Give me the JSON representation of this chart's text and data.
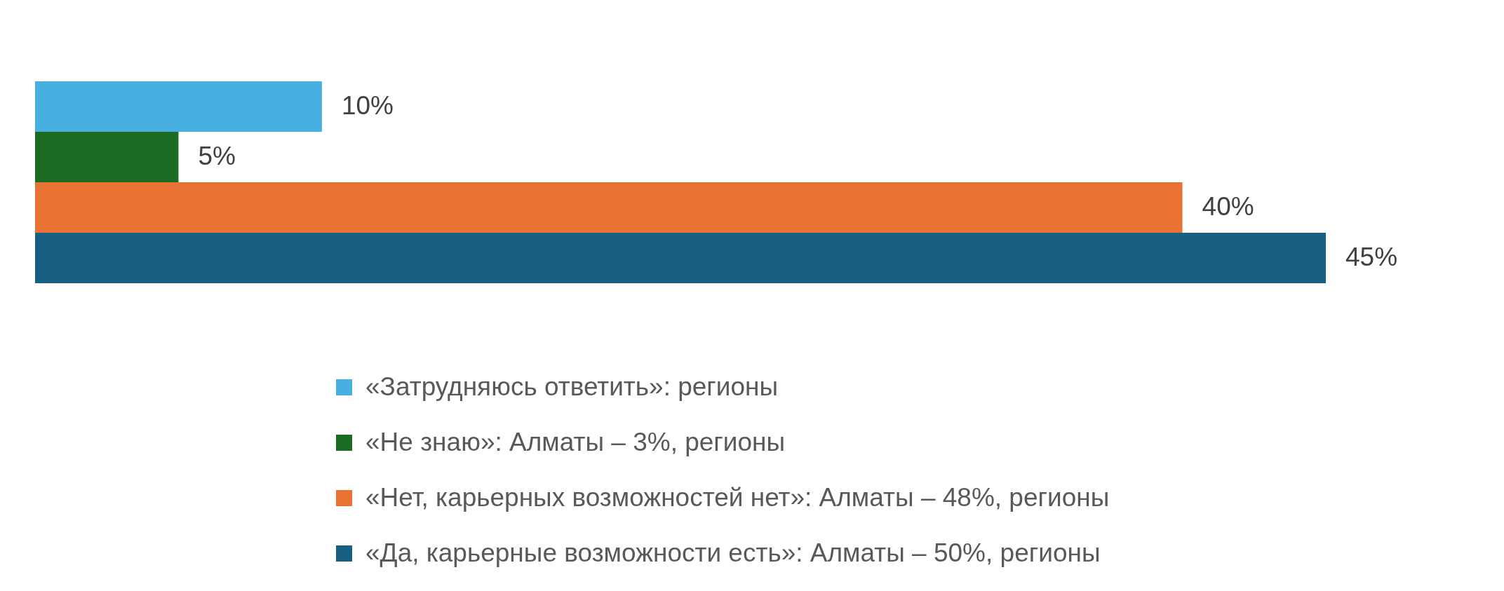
{
  "chart_data": {
    "type": "bar",
    "orientation": "horizontal",
    "categories": [
      null
    ],
    "series": [
      {
        "name": "«Затрудняюсь ответить»: регионы",
        "color": "#48b0e1",
        "values": [
          10
        ],
        "value_labels": [
          "10%"
        ]
      },
      {
        "name": "«Не знаю»: Алматы – 3%, регионы",
        "color": "#1b6b23",
        "values": [
          5
        ],
        "value_labels": [
          "5%"
        ]
      },
      {
        "name": "«Нет, карьерных возможностей нет»: Алматы – 48%, регионы",
        "color": "#e87233",
        "values": [
          40
        ],
        "value_labels": [
          "40%"
        ]
      },
      {
        "name": "«Да, карьерные возможности есть»: Алматы – 50%, регионы",
        "color": "#176083",
        "values": [
          45
        ],
        "value_labels": [
          "45%"
        ]
      }
    ],
    "legend": "bottom",
    "tick_labels": false
  }
}
